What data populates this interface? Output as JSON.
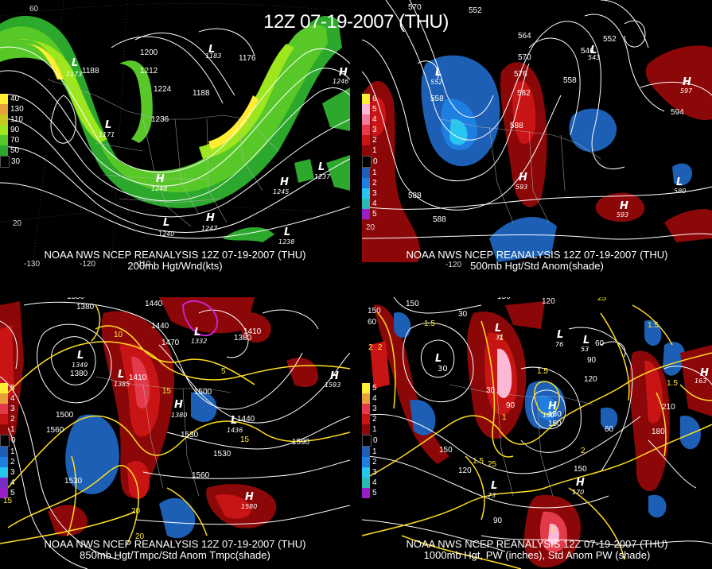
{
  "main_title": "12Z 07-19-2007 (THU)",
  "panels": [
    {
      "caption1": "NOAA NWS NCEP REANALYSIS 12Z 07-19-2007 (THU)",
      "caption2": "200mb Hgt/Wnd(kts)",
      "legend": [
        {
          "label": "40",
          "color": "#ffee33"
        },
        {
          "label": "130",
          "color": "#e8a13a"
        },
        {
          "label": "110",
          "color": "#c8c81e"
        },
        {
          "label": "90",
          "color": "#9ee61e"
        },
        {
          "label": "70",
          "color": "#58c828"
        },
        {
          "label": "50",
          "color": "#2ca82c"
        },
        {
          "label": "30",
          "color": "#000000"
        }
      ],
      "contour_labels": [
        "1200",
        "1188",
        "1212",
        "1224",
        "1236",
        "1188",
        "1176",
        "1183"
      ],
      "centers": [
        {
          "type": "L",
          "value": "1173"
        },
        {
          "type": "L",
          "value": "1183"
        },
        {
          "type": "L",
          "value": "1171"
        },
        {
          "type": "H",
          "value": "1246"
        },
        {
          "type": "H",
          "value": "1248"
        },
        {
          "type": "H",
          "value": "1245"
        },
        {
          "type": "L",
          "value": "1237"
        },
        {
          "type": "L",
          "value": "1240"
        },
        {
          "type": "H",
          "value": "1247"
        },
        {
          "type": "L",
          "value": "1238"
        }
      ],
      "ticks": [
        "60",
        "20",
        "-130",
        "-120",
        "-110"
      ]
    },
    {
      "caption1": "NOAA NWS NCEP REANALYSIS 12Z 07-19-2007 (THU)",
      "caption2": "500mb Hgt/Std Anom(shade)",
      "legend": [
        {
          "label": "6",
          "color": "#ffee33"
        },
        {
          "label": "5",
          "color": "#ffb7d5"
        },
        {
          "label": "4",
          "color": "#f27aa0"
        },
        {
          "label": "3",
          "color": "#e23a4a"
        },
        {
          "label": "2",
          "color": "#c81414"
        },
        {
          "label": "1",
          "color": "#8c0808"
        },
        {
          "label": "0",
          "color": "#000000"
        },
        {
          "label": "1",
          "color": "#1c5fb4"
        },
        {
          "label": "2",
          "color": "#1f7fe0"
        },
        {
          "label": "3",
          "color": "#26c6ee"
        },
        {
          "label": "4",
          "color": "#2ab8b8"
        },
        {
          "label": "5",
          "color": "#9a1ec8"
        }
      ],
      "contour_labels": [
        "570",
        "552",
        "564",
        "552",
        "570",
        "576",
        "546",
        "558",
        "582",
        "558",
        "588",
        "594",
        "588",
        "588"
      ],
      "centers": [
        {
          "type": "L",
          "value": "552"
        },
        {
          "type": "L",
          "value": "543"
        },
        {
          "type": "H",
          "value": "597"
        },
        {
          "type": "H",
          "value": "593"
        },
        {
          "type": "L",
          "value": "580"
        },
        {
          "type": "H",
          "value": "593"
        }
      ],
      "ticks": [
        "20",
        "-120"
      ]
    },
    {
      "caption1": "NOAA NWS NCEP REANALYSIS 12Z 07-19-2007 (THU)",
      "caption2": "850mb Hgt/Tmpc/Std Anom Tmpc(shade)",
      "legend": [
        {
          "label": "5",
          "color": "#ffee33"
        },
        {
          "label": "4",
          "color": "#e8a13a"
        },
        {
          "label": "3",
          "color": "#e23a4a"
        },
        {
          "label": "2",
          "color": "#c81414"
        },
        {
          "label": "1",
          "color": "#8c0808"
        },
        {
          "label": "0",
          "color": "#000000"
        },
        {
          "label": "1",
          "color": "#1c5fb4"
        },
        {
          "label": "2",
          "color": "#1f7fe0"
        },
        {
          "label": "3",
          "color": "#26c6ee"
        },
        {
          "label": "4",
          "color": "#7a2cc8"
        },
        {
          "label": "5",
          "color": "#9a1ec8"
        }
      ],
      "contour_labels": [
        "1350",
        "1380",
        "1470",
        "1440",
        "1410",
        "1440",
        "1380",
        "1470",
        "1410",
        "1500",
        "1500",
        "1560",
        "1530",
        "1440",
        "1590",
        "1530",
        "1560",
        "1530",
        "1380"
      ],
      "temp_labels": [
        "10",
        "15",
        "5",
        "20",
        "15",
        "20",
        "15"
      ],
      "centers": [
        {
          "type": "L",
          "value": "1349"
        },
        {
          "type": "L",
          "value": "1332"
        },
        {
          "type": "L",
          "value": "1385"
        },
        {
          "type": "H",
          "value": "1380"
        },
        {
          "type": "L",
          "value": "1436"
        },
        {
          "type": "H",
          "value": "1593"
        },
        {
          "type": "H",
          "value": "1580"
        }
      ]
    },
    {
      "caption1": "NOAA NWS NCEP REANALYSIS 12Z 07-19-2007 (THU)",
      "caption2": "1000mb Hgt, PW (inches), Std Anom PW (shade)",
      "legend": [
        {
          "label": "5",
          "color": "#ffee33"
        },
        {
          "label": "4",
          "color": "#e8a13a"
        },
        {
          "label": "3",
          "color": "#e23a4a"
        },
        {
          "label": "2",
          "color": "#c81414"
        },
        {
          "label": "1",
          "color": "#8c0808"
        },
        {
          "label": "0",
          "color": "#000000"
        },
        {
          "label": "1",
          "color": "#1c5fb4"
        },
        {
          "label": "2",
          "color": "#1f7fe0"
        },
        {
          "label": "3",
          "color": "#26c6ee"
        },
        {
          "label": "4",
          "color": "#2ab8b8"
        },
        {
          "label": "5",
          "color": "#9a1ec8"
        }
      ],
      "contour_labels": [
        "150",
        "150",
        "120",
        "30",
        "60",
        "90",
        "120",
        "30",
        "90",
        "180",
        "150",
        "60",
        "210",
        "180",
        "150",
        "120",
        "150",
        "90",
        "150",
        "60"
      ],
      "pw_labels": [
        "1.5",
        "1",
        "25",
        "1.5",
        "2",
        "1.5",
        "2",
        "1",
        "25",
        "1.5",
        "1",
        "1.5",
        "2"
      ],
      "centers": [
        {
          "type": "L",
          "value": "30"
        },
        {
          "type": "L",
          "value": "31"
        },
        {
          "type": "L",
          "value": "76"
        },
        {
          "type": "L",
          "value": "53"
        },
        {
          "type": "H",
          "value": "180"
        },
        {
          "type": "H",
          "value": "170"
        },
        {
          "type": "H",
          "value": "163"
        },
        {
          "type": "L",
          "value": "73"
        }
      ]
    }
  ]
}
